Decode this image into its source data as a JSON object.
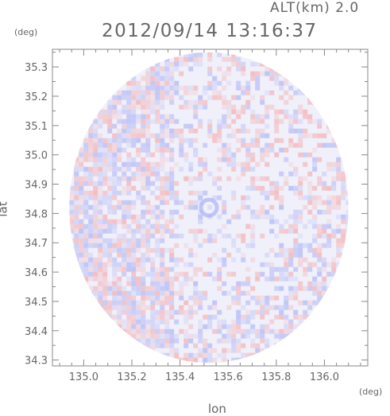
{
  "header": {
    "alt_label": "ALT(km) 2.0",
    "timestamp": "2012/09/14 13:16:37"
  },
  "chart_data": {
    "type": "heatmap",
    "description_units": {
      "x_unit": "(deg)",
      "y_unit": "(deg)"
    },
    "xlabel": "lon",
    "ylabel": "lat",
    "xlim": [
      134.87,
      136.18
    ],
    "ylim": [
      34.28,
      35.36
    ],
    "x_ticks": [
      135.0,
      135.2,
      135.4,
      135.6,
      135.8,
      136.0
    ],
    "x_tick_labels": [
      "135.0",
      "135.2",
      "135.4",
      "135.6",
      "135.8",
      "136.0"
    ],
    "y_ticks": [
      34.3,
      34.4,
      34.5,
      34.6,
      34.7,
      34.8,
      34.9,
      35.0,
      35.1,
      35.2,
      35.3
    ],
    "y_tick_labels": [
      "34.3",
      "34.4",
      "34.5",
      "34.6",
      "34.7",
      "34.8",
      "34.9",
      "35.0",
      "35.1",
      "35.2",
      "35.3"
    ],
    "radar_center": {
      "lon": 135.52,
      "lat": 34.82
    },
    "radar_range_lon_deg": 0.58,
    "radar_range_lat_deg": 0.53,
    "colors": {
      "positive": "#f4a0a0",
      "negative": "#a0a8f4",
      "neutral": "#f0f0fa",
      "frame": "#888888"
    }
  }
}
